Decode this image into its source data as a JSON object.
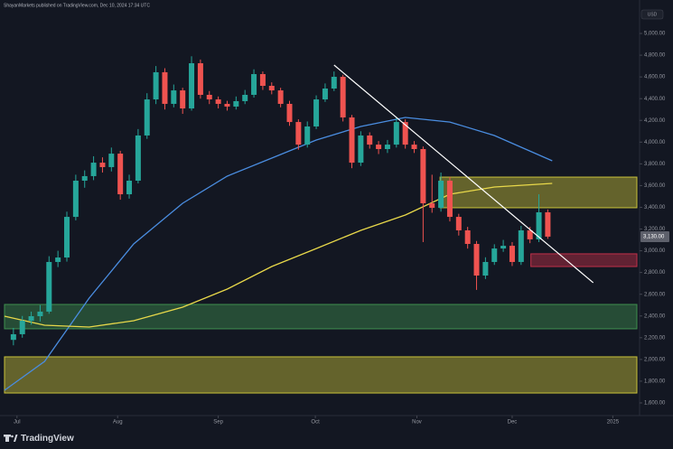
{
  "chart_data": {
    "type": "candlestick",
    "title": "ShayanMarkets published on TradingView.com, Dec 10, 2024 17:34 UTC",
    "currency": "USD",
    "brand": "TradingView",
    "x": [
      0,
      1,
      2,
      3,
      4,
      5,
      6,
      7,
      8,
      9,
      10,
      11,
      12,
      13,
      14,
      15,
      16,
      17,
      18,
      19,
      20,
      21,
      22,
      23,
      24,
      25,
      26,
      27,
      28,
      29,
      30,
      31,
      32,
      33,
      34,
      35,
      36,
      37,
      38,
      39,
      40,
      41,
      42,
      43,
      44,
      45,
      46,
      47,
      48,
      49,
      50,
      51,
      52,
      53,
      54,
      55,
      56,
      57,
      58,
      59,
      60
    ],
    "open": [
      2180,
      2232,
      2356,
      2398,
      2440,
      2897,
      2938,
      3312,
      3645,
      3687,
      3811,
      3770,
      3894,
      3520,
      3645,
      4061,
      4393,
      4643,
      4352,
      4476,
      4310,
      4726,
      4435,
      4393,
      4352,
      4327,
      4377,
      4435,
      4626,
      4518,
      4476,
      4352,
      4185,
      3977,
      4144,
      4393,
      4493,
      4601,
      4227,
      3811,
      4061,
      3977,
      3936,
      3977,
      4185,
      3977,
      3936,
      3437,
      3395,
      3645,
      3312,
      3188,
      3063,
      2772,
      2897,
      3021,
      3046,
      2897,
      3188,
      3105,
      3354
    ],
    "high": [
      2290,
      2400,
      2440,
      2500,
      2950,
      3000,
      3360,
      3700,
      3740,
      3870,
      3860,
      3950,
      3920,
      3700,
      4120,
      4450,
      4700,
      4680,
      4530,
      4500,
      4790,
      4760,
      4470,
      4420,
      4380,
      4420,
      4480,
      4670,
      4650,
      4550,
      4500,
      4380,
      4210,
      4190,
      4430,
      4540,
      4650,
      4620,
      4250,
      4100,
      4090,
      4010,
      4020,
      4230,
      4210,
      4010,
      3960,
      3700,
      3720,
      3680,
      3340,
      3220,
      3090,
      2940,
      3060,
      3100,
      3080,
      3230,
      3220,
      3520,
      3380
    ],
    "low": [
      2130,
      2200,
      2320,
      2350,
      2420,
      2850,
      2900,
      3280,
      3580,
      3650,
      3720,
      3730,
      3470,
      3480,
      3620,
      4030,
      4350,
      4300,
      4320,
      4260,
      4290,
      4400,
      4350,
      4310,
      4290,
      4300,
      4350,
      4410,
      4480,
      4440,
      4320,
      4150,
      3930,
      3950,
      4120,
      4370,
      4470,
      4190,
      3760,
      3780,
      3940,
      3890,
      3900,
      3950,
      3940,
      3900,
      3080,
      3350,
      3360,
      3270,
      3140,
      3020,
      2640,
      2740,
      2870,
      2990,
      2860,
      2870,
      3070,
      3080,
      3110
    ],
    "close": [
      2232,
      2356,
      2398,
      2440,
      2897,
      2938,
      3312,
      3645,
      3687,
      3811,
      3770,
      3894,
      3520,
      3645,
      4061,
      4393,
      4643,
      4352,
      4476,
      4310,
      4726,
      4435,
      4393,
      4352,
      4327,
      4377,
      4435,
      4626,
      4518,
      4476,
      4352,
      4185,
      3977,
      4144,
      4393,
      4493,
      4601,
      4227,
      3811,
      4061,
      3977,
      3936,
      3977,
      4185,
      3977,
      3936,
      3437,
      3395,
      3645,
      3312,
      3188,
      3063,
      2772,
      2897,
      3021,
      3046,
      2897,
      3188,
      3105,
      3354,
      3130
    ],
    "up_color": "#26a69a",
    "down_color": "#ef5350",
    "price_tag": {
      "value": 3130,
      "label": "3,130.00"
    },
    "overlays": [
      {
        "color": "#4a8de0",
        "x": [
          -1,
          3.5,
          8.5,
          13.5,
          19,
          24,
          29,
          34,
          39,
          44,
          49,
          54,
          60.5
        ],
        "values": [
          1716,
          1982,
          2564,
          3063,
          3437,
          3687,
          3853,
          4019,
          4144,
          4227,
          4185,
          4061,
          3828
        ]
      },
      {
        "color": "#e8d84a",
        "x": [
          -1,
          3.5,
          8.5,
          13.5,
          19,
          24,
          29,
          34,
          39,
          44,
          49,
          54,
          60.5
        ],
        "values": [
          2398,
          2315,
          2298,
          2356,
          2481,
          2647,
          2855,
          3021,
          3188,
          3329,
          3520,
          3587,
          3620
        ]
      }
    ],
    "zones": [
      {
        "x_start": 47.9,
        "y_low": 3396,
        "y_high": 3678,
        "color": "#c8c23a"
      },
      {
        "x_start": 58.1,
        "y_low": 2855,
        "y_high": 2972,
        "color": "#c0304a"
      },
      {
        "x_start": -1,
        "y_low": 2282,
        "y_high": 2506,
        "color": "#3f8f4f"
      },
      {
        "x_start": -1,
        "y_low": 1691,
        "y_high": 2024,
        "color": "#c8c23a"
      }
    ],
    "trendline": {
      "color": "#ffffff",
      "x": [
        36,
        65.1
      ],
      "values": [
        4709,
        2706
      ]
    },
    "xlim": [
      -1,
      70
    ],
    "xticks": [
      {
        "value": 0.4,
        "label": "Jul"
      },
      {
        "value": 11.7,
        "label": "Aug"
      },
      {
        "value": 23,
        "label": "Sep"
      },
      {
        "value": 33.9,
        "label": "Oct"
      },
      {
        "value": 45.3,
        "label": "Nov"
      },
      {
        "value": 56,
        "label": "Dec"
      },
      {
        "value": 67.3,
        "label": "2025"
      }
    ],
    "ylim": [
      1500,
      5100
    ],
    "yticks": [
      {
        "value": 1600,
        "label": "1,600.00"
      },
      {
        "value": 1800,
        "label": "1,800.00"
      },
      {
        "value": 2000,
        "label": "2,000.00"
      },
      {
        "value": 2200,
        "label": "2,200.00"
      },
      {
        "value": 2400,
        "label": "2,400.00"
      },
      {
        "value": 2600,
        "label": "2,600.00"
      },
      {
        "value": 2800,
        "label": "2,800.00"
      },
      {
        "value": 3000,
        "label": "3,000.00"
      },
      {
        "value": 3200,
        "label": "3,200.00"
      },
      {
        "value": 3400,
        "label": "3,400.00"
      },
      {
        "value": 3600,
        "label": "3,600.00"
      },
      {
        "value": 3800,
        "label": "3,800.00"
      },
      {
        "value": 4000,
        "label": "4,000.00"
      },
      {
        "value": 4200,
        "label": "4,200.00"
      },
      {
        "value": 4400,
        "label": "4,400.00"
      },
      {
        "value": 4600,
        "label": "4,600.00"
      },
      {
        "value": 4800,
        "label": "4,800.00"
      },
      {
        "value": 5000,
        "label": "5,000.00"
      }
    ]
  }
}
